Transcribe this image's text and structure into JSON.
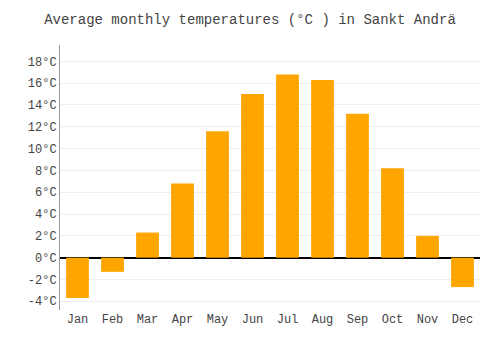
{
  "chart_data": {
    "type": "bar",
    "title": "Average monthly temperatures (°C ) in Sankt Andrä",
    "categories": [
      "Jan",
      "Feb",
      "Mar",
      "Apr",
      "May",
      "Jun",
      "Jul",
      "Aug",
      "Sep",
      "Oct",
      "Nov",
      "Dec"
    ],
    "values": [
      -3.7,
      -1.3,
      2.3,
      6.8,
      11.6,
      15.0,
      16.8,
      16.3,
      13.2,
      8.2,
      2.0,
      -2.7
    ],
    "color": "#FFA500",
    "ylim": [
      -4.8,
      19.5
    ],
    "yticks": [
      {
        "value": -4,
        "label": "-4°C"
      },
      {
        "value": -2,
        "label": "-2°C"
      },
      {
        "value": 0,
        "label": "0°C"
      },
      {
        "value": 2,
        "label": "2°C"
      },
      {
        "value": 4,
        "label": "4°C"
      },
      {
        "value": 6,
        "label": "6°C"
      },
      {
        "value": 8,
        "label": "8°C"
      },
      {
        "value": 10,
        "label": "10°C"
      },
      {
        "value": 12,
        "label": "12°C"
      },
      {
        "value": 14,
        "label": "14°C"
      },
      {
        "value": 16,
        "label": "16°C"
      },
      {
        "value": 18,
        "label": "18°C"
      }
    ],
    "grid": true
  }
}
